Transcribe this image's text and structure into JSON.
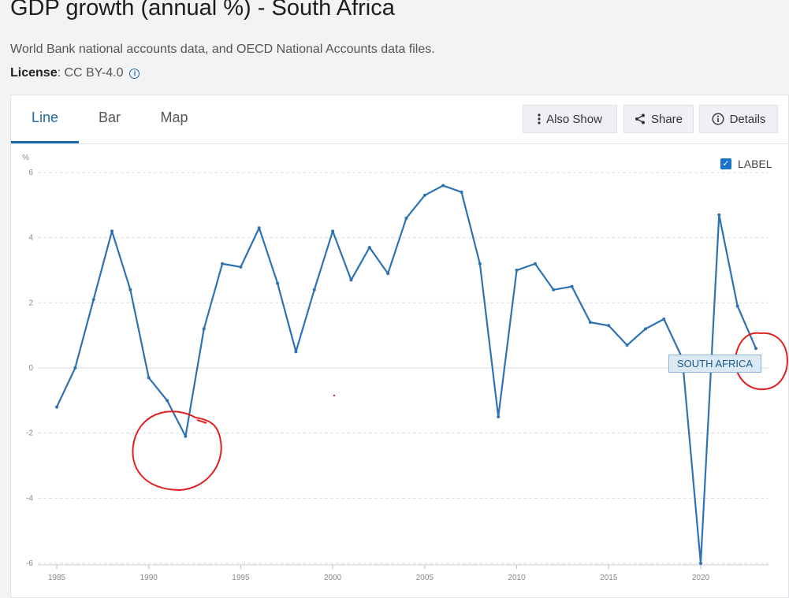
{
  "page": {
    "title": "GDP growth (annual %) - South Africa",
    "source": "World Bank national accounts data, and OECD National Accounts data files.",
    "license_label": "License",
    "license_value": ": CC BY-4.0",
    "info_glyph": "i"
  },
  "tabs": [
    {
      "label": "Line",
      "active": true
    },
    {
      "label": "Bar",
      "active": false
    },
    {
      "label": "Map",
      "active": false
    }
  ],
  "actions": {
    "also_show": "Also Show",
    "share": "Share",
    "details": "Details"
  },
  "label_toggle": {
    "label": "LABEL",
    "checked": true,
    "check_glyph": "✓"
  },
  "series_tag": "SOUTH AFRICA",
  "colors": {
    "line": "#2e72b3",
    "accent": "#1a6aab",
    "annotation": "#e02020"
  },
  "chart_data": {
    "type": "line",
    "title": "",
    "xlabel": "",
    "ylabel": "%",
    "xlim": [
      1985,
      2023
    ],
    "ylim": [
      -6,
      6
    ],
    "x_ticks": [
      1985,
      1990,
      1995,
      2000,
      2005,
      2010,
      2015,
      2020
    ],
    "y_ticks": [
      6,
      4,
      2,
      0,
      -2,
      -4,
      -6
    ],
    "grid": true,
    "series": [
      {
        "name": "SOUTH AFRICA",
        "x": [
          1985,
          1986,
          1987,
          1988,
          1989,
          1990,
          1991,
          1992,
          1993,
          1994,
          1995,
          1996,
          1997,
          1998,
          1999,
          2000,
          2001,
          2002,
          2003,
          2004,
          2005,
          2006,
          2007,
          2008,
          2009,
          2010,
          2011,
          2012,
          2013,
          2014,
          2015,
          2016,
          2017,
          2018,
          2019,
          2020,
          2021,
          2022,
          2023
        ],
        "values": [
          -1.2,
          0.0,
          2.1,
          4.2,
          2.4,
          -0.3,
          -1.0,
          -2.1,
          1.2,
          3.2,
          3.1,
          4.3,
          2.6,
          0.5,
          2.4,
          4.2,
          2.7,
          3.7,
          2.9,
          4.6,
          5.3,
          5.6,
          5.4,
          3.2,
          -1.5,
          3.0,
          3.2,
          2.4,
          2.5,
          1.4,
          1.3,
          0.7,
          1.2,
          1.5,
          0.3,
          -6.0,
          4.7,
          1.9,
          0.6
        ]
      }
    ]
  }
}
